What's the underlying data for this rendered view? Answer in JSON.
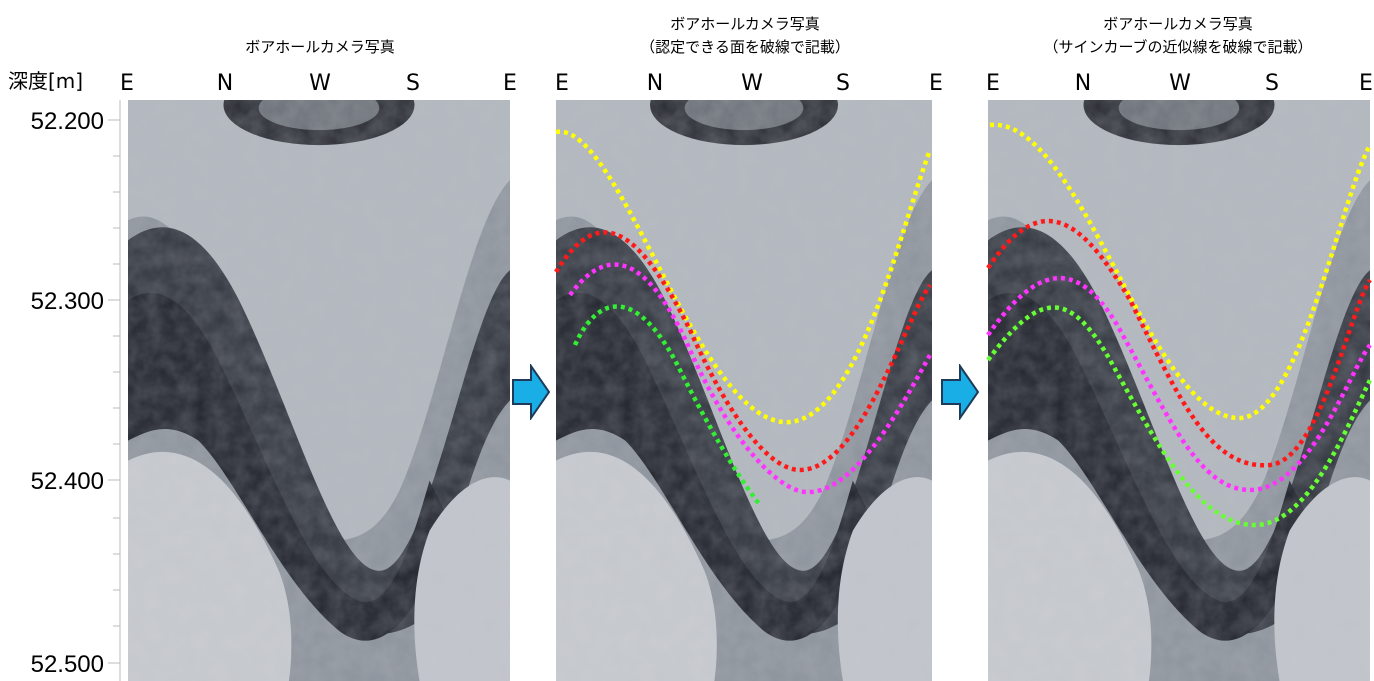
{
  "depth_axis": {
    "label": "深度[m]",
    "ticks": [
      "52.200",
      "52.300",
      "52.400",
      "52.500"
    ]
  },
  "panels": [
    {
      "title": [
        "ボアホールカメラ写真"
      ],
      "directions": [
        "E",
        "N",
        "W",
        "S",
        "E"
      ]
    },
    {
      "title": [
        "ボアホールカメラ写真",
        "（認定できる面を破線で記載）"
      ],
      "directions": [
        "E",
        "N",
        "W",
        "S",
        "E"
      ]
    },
    {
      "title": [
        "ボアホールカメラ写真",
        "（サインカーブの近似線を破線で記載）"
      ],
      "directions": [
        "E",
        "N",
        "W",
        "S",
        "E"
      ]
    }
  ]
}
